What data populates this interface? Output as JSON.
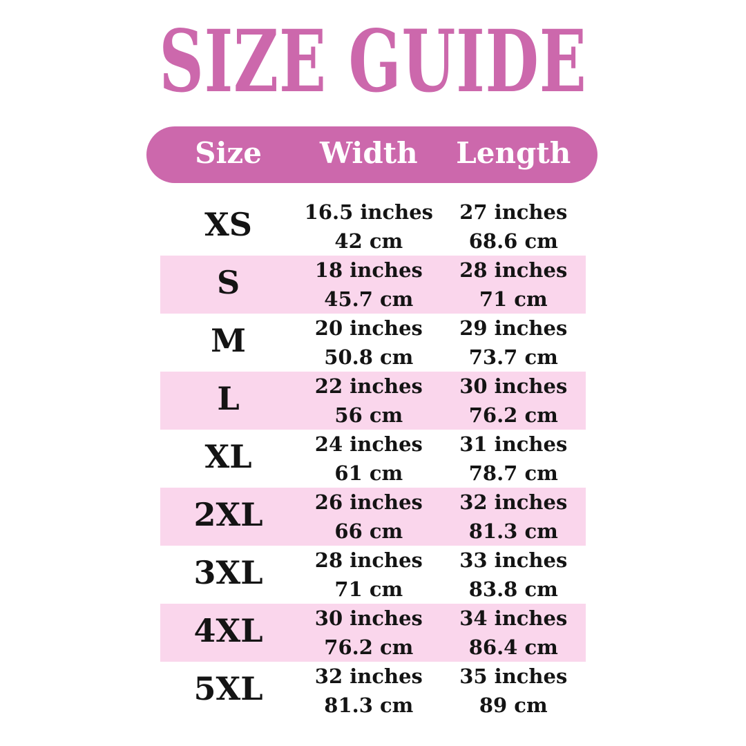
{
  "title": "SIZE GUIDE",
  "colors": {
    "accent": "#CC68AC",
    "row_highlight": "#FAD6EC",
    "header_text": "#FFFFFF",
    "text": "#141414",
    "background": "#FFFFFF"
  },
  "table": {
    "columns": {
      "size": "Size",
      "width": "Width",
      "length": "Length"
    },
    "rows": [
      {
        "size": "XS",
        "width_in": "16.5 inches",
        "width_cm": "42 cm",
        "length_in": "27 inches",
        "length_cm": "68.6 cm",
        "highlighted": false
      },
      {
        "size": "S",
        "width_in": "18 inches",
        "width_cm": "45.7 cm",
        "length_in": "28 inches",
        "length_cm": "71 cm",
        "highlighted": true
      },
      {
        "size": "M",
        "width_in": "20 inches",
        "width_cm": "50.8 cm",
        "length_in": "29 inches",
        "length_cm": "73.7 cm",
        "highlighted": false
      },
      {
        "size": "L",
        "width_in": "22 inches",
        "width_cm": "56 cm",
        "length_in": "30 inches",
        "length_cm": "76.2 cm",
        "highlighted": true
      },
      {
        "size": "XL",
        "width_in": "24 inches",
        "width_cm": "61 cm",
        "length_in": "31 inches",
        "length_cm": "78.7 cm",
        "highlighted": false
      },
      {
        "size": "2XL",
        "width_in": "26 inches",
        "width_cm": "66 cm",
        "length_in": "32 inches",
        "length_cm": "81.3 cm",
        "highlighted": true
      },
      {
        "size": "3XL",
        "width_in": "28 inches",
        "width_cm": "71 cm",
        "length_in": "33 inches",
        "length_cm": "83.8 cm",
        "highlighted": false
      },
      {
        "size": "4XL",
        "width_in": "30 inches",
        "width_cm": "76.2 cm",
        "length_in": "34 inches",
        "length_cm": "86.4 cm",
        "highlighted": true
      },
      {
        "size": "5XL",
        "width_in": "32 inches",
        "width_cm": "81.3 cm",
        "length_in": "35 inches",
        "length_cm": "89 cm",
        "highlighted": false
      }
    ]
  }
}
